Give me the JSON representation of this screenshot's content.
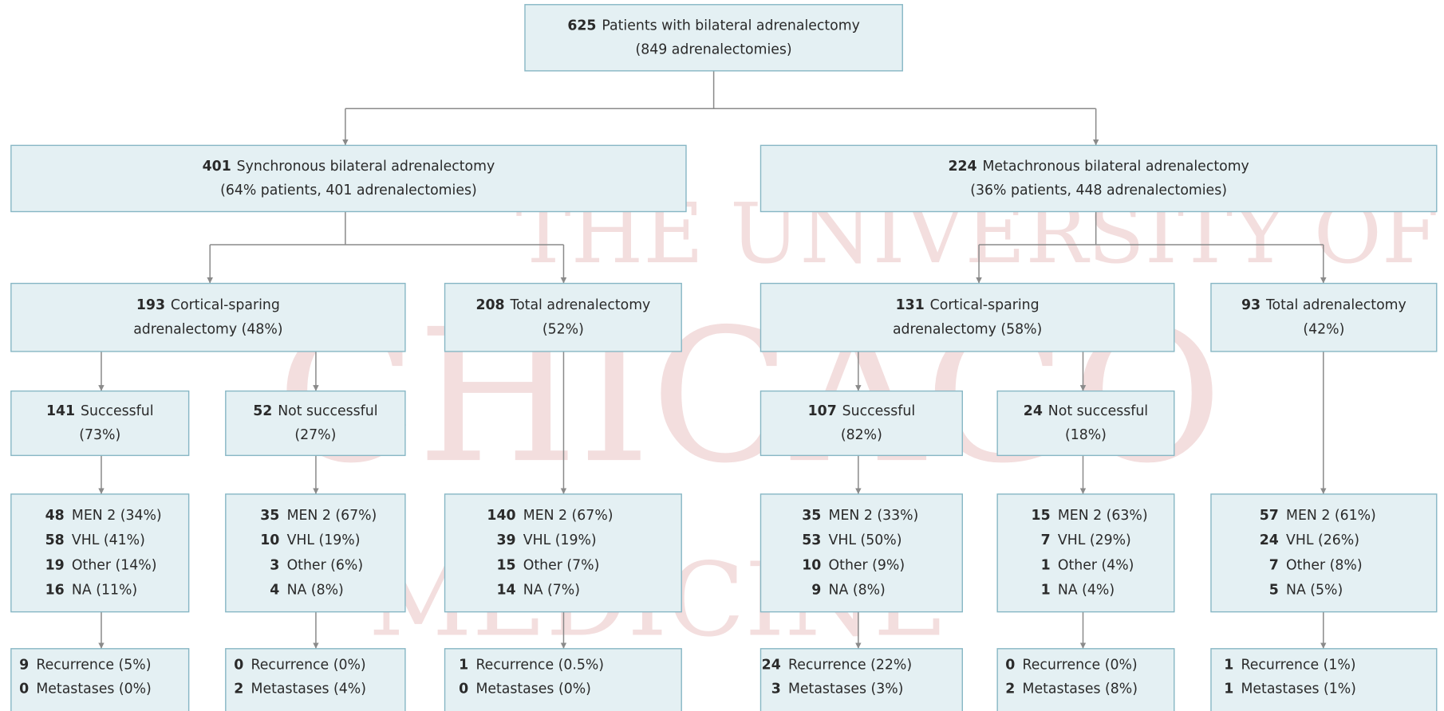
{
  "watermark": [
    "THE UNIVERSITY OF",
    "CHICAGO",
    "MEDICINE"
  ],
  "nodes": [
    {
      "lines": [
        {
          "n": "625",
          "t": "Patients with bilateral adrenalectomy"
        },
        {
          "t": "(849 adrenalectomies)"
        }
      ]
    },
    {
      "lines": [
        {
          "n": "401",
          "t": "Synchronous bilateral adrenalectomy"
        },
        {
          "t": "(64% patients, 401 adrenalectomies)"
        }
      ]
    },
    {
      "lines": [
        {
          "n": "224",
          "t": "Metachronous bilateral adrenalectomy"
        },
        {
          "t": "(36% patients, 448 adrenalectomies)"
        }
      ]
    },
    {
      "lines": [
        {
          "n": "193",
          "t": "Cortical-sparing"
        },
        {
          "t": "adrenalectomy (48%)"
        }
      ]
    },
    {
      "lines": [
        {
          "n": "208",
          "t": "Total adrenalectomy"
        },
        {
          "t": "(52%)"
        }
      ]
    },
    {
      "lines": [
        {
          "n": "131",
          "t": "Cortical-sparing"
        },
        {
          "t": "adrenalectomy (58%)"
        }
      ]
    },
    {
      "lines": [
        {
          "n": "93",
          "t": "Total adrenalectomy"
        },
        {
          "t": "(42%)"
        }
      ]
    },
    {
      "lines": [
        {
          "n": "141",
          "t": "Successful"
        },
        {
          "t": "(73%)"
        }
      ]
    },
    {
      "lines": [
        {
          "n": "52",
          "t": "Not successful"
        },
        {
          "t": "(27%)"
        }
      ]
    },
    {
      "lines": [
        {
          "n": "107",
          "t": "Successful"
        },
        {
          "t": "(82%)"
        }
      ]
    },
    {
      "lines": [
        {
          "n": "24",
          "t": "Not successful"
        },
        {
          "t": "(18%)"
        }
      ]
    },
    {
      "lines": [
        {
          "n": "48",
          "t": "MEN 2 (34%)"
        },
        {
          "n": "58",
          "t": "VHL (41%)"
        },
        {
          "n": "19",
          "t": "Other (14%)"
        },
        {
          "n": "16",
          "t": "NA (11%)"
        }
      ]
    },
    {
      "lines": [
        {
          "n": "35",
          "t": "MEN 2 (67%)"
        },
        {
          "n": "10",
          "t": "VHL (19%)"
        },
        {
          "n": "3",
          "t": "Other (6%)"
        },
        {
          "n": "4",
          "t": "NA (8%)"
        }
      ]
    },
    {
      "lines": [
        {
          "n": "140",
          "t": "MEN 2 (67%)"
        },
        {
          "n": "39",
          "t": "VHL (19%)"
        },
        {
          "n": "15",
          "t": "Other (7%)"
        },
        {
          "n": "14",
          "t": "NA (7%)"
        }
      ]
    },
    {
      "lines": [
        {
          "n": "35",
          "t": "MEN 2 (33%)"
        },
        {
          "n": "53",
          "t": "VHL (50%)"
        },
        {
          "n": "10",
          "t": "Other (9%)"
        },
        {
          "n": "9",
          "t": "NA (8%)"
        }
      ]
    },
    {
      "lines": [
        {
          "n": "15",
          "t": "MEN 2 (63%)"
        },
        {
          "n": "7",
          "t": "VHL (29%)"
        },
        {
          "n": "1",
          "t": "Other (4%)"
        },
        {
          "n": "1",
          "t": "NA (4%)"
        }
      ]
    },
    {
      "lines": [
        {
          "n": "57",
          "t": "MEN 2 (61%)"
        },
        {
          "n": "24",
          "t": "VHL (26%)"
        },
        {
          "n": "7",
          "t": "Other (8%)"
        },
        {
          "n": "5",
          "t": "NA (5%)"
        }
      ]
    },
    {
      "lines": [
        {
          "n": "9",
          "t": "Recurrence (5%)"
        },
        {
          "n": "0",
          "t": "Metastases (0%)"
        }
      ]
    },
    {
      "lines": [
        {
          "n": "0",
          "t": "Recurrence (0%)"
        },
        {
          "n": "2",
          "t": "Metastases (4%)"
        }
      ]
    },
    {
      "lines": [
        {
          "n": "1",
          "t": "Recurrence (0.5%)"
        },
        {
          "n": "0",
          "t": "Metastases (0%)"
        }
      ]
    },
    {
      "lines": [
        {
          "n": "24",
          "t": "Recurrence (22%)"
        },
        {
          "n": "3",
          "t": "Metastases (3%)"
        }
      ]
    },
    {
      "lines": [
        {
          "n": "0",
          "t": "Recurrence (0%)"
        },
        {
          "n": "2",
          "t": "Metastases (8%)"
        }
      ]
    },
    {
      "lines": [
        {
          "n": "1",
          "t": "Recurrence (1%)"
        },
        {
          "n": "1",
          "t": "Metastases (1%)"
        }
      ]
    }
  ]
}
